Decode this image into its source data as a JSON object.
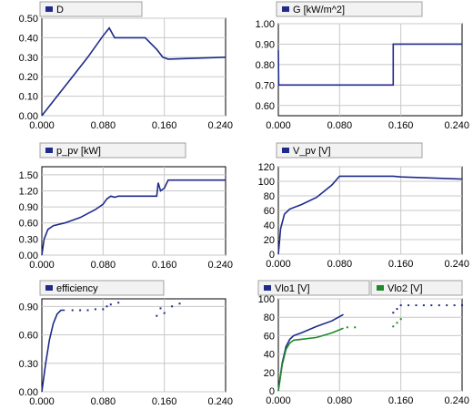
{
  "chart_data": [
    {
      "type": "line",
      "title": "",
      "grid": true,
      "legend_placement": "top-left",
      "xlim": [
        0,
        0.24
      ],
      "ylim": [
        0,
        0.5
      ],
      "x_ticks": [
        "0.000",
        "0.080",
        "0.160",
        "0.240"
      ],
      "y_ticks": [
        "0.50",
        "0.40",
        "0.30",
        "0.20",
        "0.10",
        "0.00"
      ],
      "series": [
        {
          "name": "D",
          "color": "#1f2a8a",
          "points": [
            [
              0,
              0
            ],
            [
              0.02,
              0.1
            ],
            [
              0.04,
              0.2
            ],
            [
              0.06,
              0.3
            ],
            [
              0.08,
              0.41
            ],
            [
              0.088,
              0.45
            ],
            [
              0.095,
              0.4
            ],
            [
              0.12,
              0.4
            ],
            [
              0.135,
              0.4
            ],
            [
              0.15,
              0.34
            ],
            [
              0.158,
              0.3
            ],
            [
              0.165,
              0.29
            ],
            [
              0.24,
              0.3
            ]
          ]
        }
      ]
    },
    {
      "type": "line",
      "title": "",
      "grid": true,
      "legend_placement": "top-left",
      "xlim": [
        0,
        0.24
      ],
      "ylim": [
        0.55,
        1.0
      ],
      "x_ticks": [
        "0.000",
        "0.080",
        "0.160",
        "0.240"
      ],
      "y_ticks": [
        "1.00",
        "0.90",
        "0.80",
        "0.70",
        "0.60"
      ],
      "series": [
        {
          "name": "G [kW/m^2]",
          "color": "#1f2a8a",
          "points": [
            [
              0,
              0.87
            ],
            [
              0.0005,
              0.7
            ],
            [
              0.15,
              0.7
            ],
            [
              0.15,
              0.9
            ],
            [
              0.24,
              0.9
            ]
          ]
        }
      ]
    },
    {
      "type": "line",
      "title": "",
      "grid": true,
      "legend_placement": "top-left",
      "xlim": [
        0,
        0.24
      ],
      "ylim": [
        0,
        1.65
      ],
      "x_ticks": [
        "0.000",
        "0.080",
        "0.160",
        "0.240"
      ],
      "y_ticks": [
        "1.50",
        "1.20",
        "0.90",
        "0.60",
        "0.30",
        "0.00"
      ],
      "series": [
        {
          "name": "p_pv [kW]",
          "color": "#1f2a8a",
          "points": [
            [
              0,
              0
            ],
            [
              0.003,
              0.3
            ],
            [
              0.008,
              0.48
            ],
            [
              0.015,
              0.55
            ],
            [
              0.03,
              0.6
            ],
            [
              0.05,
              0.7
            ],
            [
              0.07,
              0.85
            ],
            [
              0.08,
              0.95
            ],
            [
              0.085,
              1.05
            ],
            [
              0.09,
              1.1
            ],
            [
              0.095,
              1.08
            ],
            [
              0.1,
              1.1
            ],
            [
              0.15,
              1.1
            ],
            [
              0.152,
              1.35
            ],
            [
              0.155,
              1.2
            ],
            [
              0.16,
              1.25
            ],
            [
              0.165,
              1.4
            ],
            [
              0.24,
              1.4
            ]
          ]
        }
      ]
    },
    {
      "type": "line",
      "title": "",
      "grid": true,
      "legend_placement": "top-left",
      "xlim": [
        0,
        0.24
      ],
      "ylim": [
        0,
        120
      ],
      "x_ticks": [
        "0.000",
        "0.080",
        "0.160",
        "0.240"
      ],
      "y_ticks": [
        "120",
        "100",
        "80",
        "60",
        "40",
        "20",
        "0"
      ],
      "series": [
        {
          "name": "V_pv [V]",
          "color": "#1f2a8a",
          "points": [
            [
              0,
              0
            ],
            [
              0.003,
              35
            ],
            [
              0.008,
              55
            ],
            [
              0.015,
              62
            ],
            [
              0.03,
              68
            ],
            [
              0.05,
              78
            ],
            [
              0.07,
              95
            ],
            [
              0.08,
              107
            ],
            [
              0.15,
              107
            ],
            [
              0.16,
              106
            ],
            [
              0.24,
              103
            ]
          ]
        }
      ]
    },
    {
      "type": "line",
      "title": "",
      "grid": true,
      "legend_placement": "top-left",
      "xlim": [
        0,
        0.24
      ],
      "ylim": [
        0,
        0.98
      ],
      "x_ticks": [
        "0.000",
        "0.080",
        "0.160",
        "0.240"
      ],
      "y_ticks": [
        "0.90",
        "0.60",
        "0.30",
        "0.00"
      ],
      "series": [
        {
          "name": "efficiency",
          "color": "#1f2a8a",
          "points": [
            [
              0,
              0
            ],
            [
              0.005,
              0.3
            ],
            [
              0.01,
              0.55
            ],
            [
              0.015,
              0.72
            ],
            [
              0.02,
              0.82
            ],
            [
              0.025,
              0.86
            ],
            [
              0.03,
              0.86
            ]
          ],
          "dots": [
            [
              0.04,
              0.86
            ],
            [
              0.05,
              0.86
            ],
            [
              0.06,
              0.86
            ],
            [
              0.07,
              0.87
            ],
            [
              0.08,
              0.87
            ],
            [
              0.085,
              0.9
            ],
            [
              0.09,
              0.92
            ],
            [
              0.1,
              0.94
            ],
            [
              0.15,
              0.8
            ],
            [
              0.155,
              0.88
            ],
            [
              0.16,
              0.83
            ],
            [
              0.17,
              0.9
            ],
            [
              0.18,
              0.93
            ]
          ]
        }
      ]
    },
    {
      "type": "line",
      "title": "",
      "grid": true,
      "legend_placement": "top",
      "xlim": [
        0,
        0.24
      ],
      "ylim": [
        0,
        100
      ],
      "x_ticks": [
        "0.000",
        "0.080",
        "0.160",
        "0.240"
      ],
      "y_ticks": [
        "100",
        "80",
        "60",
        "40",
        "20",
        "0"
      ],
      "series": [
        {
          "name": "Vlo1 [V]",
          "color": "#1f2a8a",
          "points": [
            [
              0,
              0
            ],
            [
              0.005,
              30
            ],
            [
              0.01,
              48
            ],
            [
              0.015,
              56
            ],
            [
              0.02,
              60
            ],
            [
              0.03,
              63
            ],
            [
              0.05,
              70
            ],
            [
              0.07,
              76
            ],
            [
              0.085,
              83
            ]
          ],
          "dots": [
            [
              0.15,
              85
            ],
            [
              0.155,
              89
            ],
            [
              0.16,
              93
            ],
            [
              0.17,
              93
            ],
            [
              0.18,
              93
            ],
            [
              0.19,
              93
            ],
            [
              0.2,
              93
            ],
            [
              0.21,
              93
            ],
            [
              0.22,
              93
            ],
            [
              0.23,
              93
            ],
            [
              0.24,
              93
            ]
          ]
        },
        {
          "name": "Vlo2 [V]",
          "color": "#1e8a2a",
          "points": [
            [
              0,
              0
            ],
            [
              0.005,
              28
            ],
            [
              0.01,
              45
            ],
            [
              0.015,
              52
            ],
            [
              0.02,
              55
            ],
            [
              0.03,
              56
            ],
            [
              0.05,
              58
            ],
            [
              0.07,
              63
            ],
            [
              0.085,
              68
            ]
          ],
          "dots": [
            [
              0.09,
              69
            ],
            [
              0.1,
              69
            ],
            [
              0.15,
              70
            ],
            [
              0.155,
              74
            ],
            [
              0.16,
              78
            ]
          ]
        }
      ]
    }
  ]
}
